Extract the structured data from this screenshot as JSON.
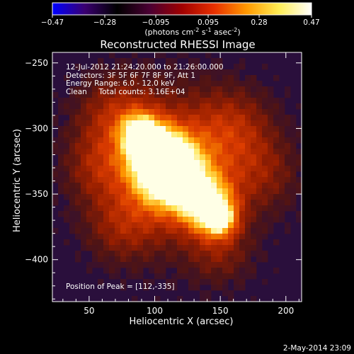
{
  "colorbar": {
    "ticks": [
      "-0.47",
      "-0.28",
      "-0.095",
      "0.095",
      "0.28",
      "0.47"
    ],
    "units_main": "(photons cm",
    "units_exp1": "-2",
    "units_mid": " s",
    "units_exp2": "-1",
    "units_mid2": " asec",
    "units_exp3": "-2",
    "units_end": ")",
    "stops": [
      "#0000ff",
      "#3a0070",
      "#000000",
      "#4a0033",
      "#a00000",
      "#e83000",
      "#ff9900",
      "#ffee55",
      "#ffffff"
    ]
  },
  "chart_data": {
    "type": "heatmap",
    "title": "Reconstructed RHESSI Image",
    "xlabel": "Heliocentric X (arcsec)",
    "ylabel": "Heliocentric Y (arcsec)",
    "xlim": [
      22,
      212
    ],
    "ylim": [
      -432,
      -242
    ],
    "xticks": [
      50,
      100,
      150,
      200
    ],
    "yticks": [
      -250,
      -300,
      -350,
      -400
    ],
    "xtick_labels": [
      "50",
      "100",
      "150",
      "200"
    ],
    "ytick_labels": [
      "−250",
      "−300",
      "−350",
      "−400"
    ],
    "clim": [
      -0.47,
      0.47
    ],
    "peak": [
      112,
      -335
    ],
    "colors": {
      "background": "#2a0f3c",
      "cool": "#5a1a10",
      "warm": "#c83000",
      "hot": "#ff8c00",
      "peak": "#fff08a"
    },
    "annotations": [
      "12-Jul-2012 21:24:20.000 to 21:26:00.000",
      "Detectors: 3F 5F 6F 7F 8F 9F, Att 1",
      "Energy Range: 6.0 - 12.0 keV",
      "Clean     Total counts: 3.16E+04"
    ],
    "peak_label": "Position of Peak = [112,-335]"
  },
  "footer": {
    "date": "2-May-2014 23:09"
  }
}
